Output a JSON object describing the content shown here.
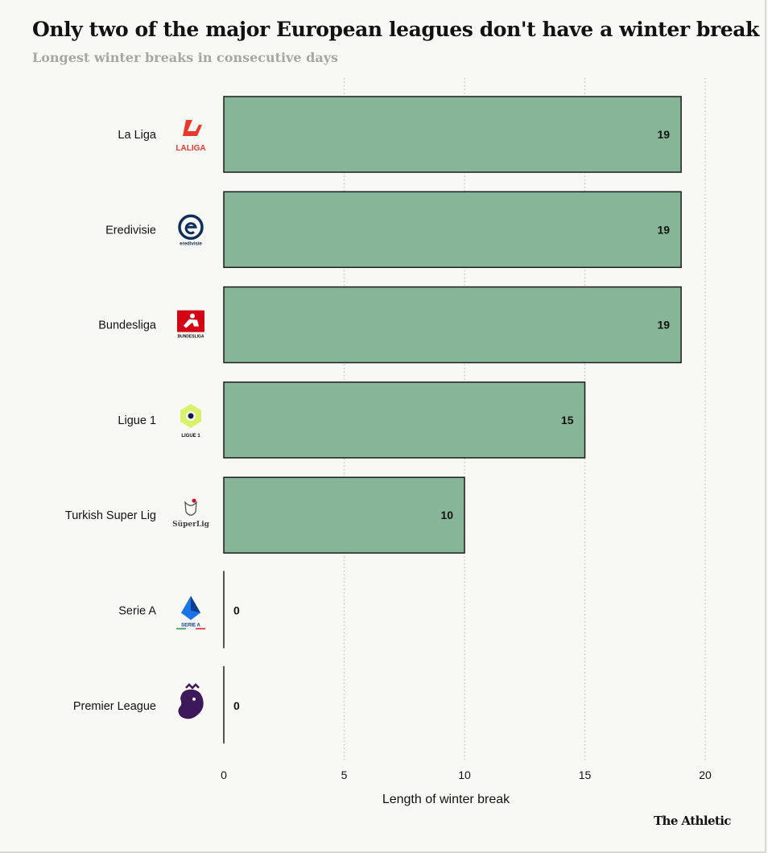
{
  "header": {
    "title": "Only two of the major European leagues don't have a winter break",
    "subtitle": "Longest winter breaks in consecutive days"
  },
  "chart_data": {
    "type": "bar",
    "orientation": "horizontal",
    "title": "Only two of the major European leagues don't have a winter break",
    "subtitle": "Longest winter breaks in consecutive days",
    "xlabel": "Length of winter break",
    "ylabel": "",
    "xlim": [
      0,
      20
    ],
    "xticks": [
      0,
      5,
      10,
      15,
      20
    ],
    "grid": "vertical dotted",
    "categories": [
      "La Liga",
      "Eredivisie",
      "Bundesliga",
      "Ligue 1",
      "Turkish Super Lig",
      "Serie A",
      "Premier League"
    ],
    "values": [
      19,
      19,
      19,
      15,
      10,
      0,
      0
    ],
    "logos": [
      {
        "name": "laliga-logo",
        "text": "LALIGA",
        "color": "#e8392d"
      },
      {
        "name": "eredivisie-logo",
        "text": "eredivisie",
        "color": "#0e2f5a"
      },
      {
        "name": "bundesliga-logo",
        "text": "BUNDESLIGA",
        "color": "#d20515"
      },
      {
        "name": "ligue1-logo",
        "text": "LIGUE 1",
        "color": "#d9f26a"
      },
      {
        "name": "superlig-logo",
        "text": "SüperLig",
        "color": "#c8102e"
      },
      {
        "name": "seriea-logo",
        "text": "SERIE A",
        "color": "#1a73e8"
      },
      {
        "name": "premier-league-logo",
        "text": "",
        "color": "#3d195b"
      }
    ],
    "bar_color": "#87b598",
    "bar_stroke": "#1c1c1c"
  },
  "footer": {
    "brand": "The Athletic"
  }
}
